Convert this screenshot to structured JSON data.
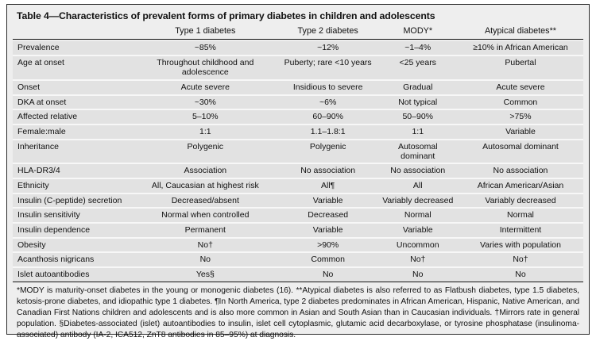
{
  "colors": {
    "border": "#2b2b2b",
    "table_bg": "#eeeeee",
    "row_bg": "#e2e2e2",
    "rule": "#141414",
    "text": "#111111"
  },
  "table": {
    "title": "Table 4—Characteristics of prevalent forms of primary diabetes in children and adolescents",
    "columns": [
      "",
      "Type 1 diabetes",
      "Type 2 diabetes",
      "MODY*",
      "Atypical diabetes**"
    ],
    "rows": [
      {
        "label": "Prevalence",
        "values": [
          "~85%",
          "~12%",
          "~1–4%",
          "≥10% in African American"
        ]
      },
      {
        "label": "Age at onset",
        "values": [
          "Throughout childhood and adolescence",
          "Puberty; rare <10 years",
          "<25 years",
          "Pubertal"
        ]
      },
      {
        "label": "Onset",
        "values": [
          "Acute severe",
          "Insidious to severe",
          "Gradual",
          "Acute severe"
        ]
      },
      {
        "label": "DKA at onset",
        "values": [
          "~30%",
          "~6%",
          "Not typical",
          "Common"
        ]
      },
      {
        "label": "Affected relative",
        "values": [
          "5–10%",
          "60–90%",
          "50–90%",
          ">75%"
        ]
      },
      {
        "label": "Female:male",
        "values": [
          "1:1",
          "1.1–1.8:1",
          "1:1",
          "Variable"
        ]
      },
      {
        "label": "Inheritance",
        "values": [
          "Polygenic",
          "Polygenic",
          "Autosomal dominant",
          "Autosomal dominant"
        ]
      },
      {
        "label": "HLA-DR3/4",
        "values": [
          "Association",
          "No association",
          "No association",
          "No association"
        ]
      },
      {
        "label": "Ethnicity",
        "values": [
          "All, Caucasian at highest risk",
          "All¶",
          "All",
          "African American/Asian"
        ]
      },
      {
        "label": "Insulin (C-peptide) secretion",
        "values": [
          "Decreased/absent",
          "Variable",
          "Variably decreased",
          "Variably decreased"
        ]
      },
      {
        "label": "Insulin sensitivity",
        "values": [
          "Normal when controlled",
          "Decreased",
          "Normal",
          "Normal"
        ]
      },
      {
        "label": "Insulin dependence",
        "values": [
          "Permanent",
          "Variable",
          "Variable",
          "Intermittent"
        ]
      },
      {
        "label": "Obesity",
        "values": [
          "No†",
          ">90%",
          "Uncommon",
          "Varies with population"
        ]
      },
      {
        "label": "Acanthosis nigricans",
        "values": [
          "No",
          "Common",
          "No†",
          "No†"
        ]
      },
      {
        "label": "Islet autoantibodies",
        "values": [
          "Yes§",
          "No",
          "No",
          "No"
        ]
      }
    ],
    "footnote": "*MODY is maturity-onset diabetes in the young or monogenic diabetes (16). **Atypical diabetes is also referred to as Flatbush diabetes, type 1.5 diabetes, ketosis-prone diabetes, and idiopathic type 1 diabetes. ¶In North America, type 2 diabetes predominates in African American, Hispanic, Native American, and Canadian First Nations children and adolescents and is also more common in Asian and South Asian than in Caucasian individuals. †Mirrors rate in general population. §Diabetes-associated (islet) autoantibodies to insulin, islet cell cytoplasmic, glutamic acid decarboxylase, or tyrosine phosphatase (insulinoma-associated) antibody (IA-2, ICA512, ZnT8 antibodies in 85–95%) at diagnosis."
  }
}
